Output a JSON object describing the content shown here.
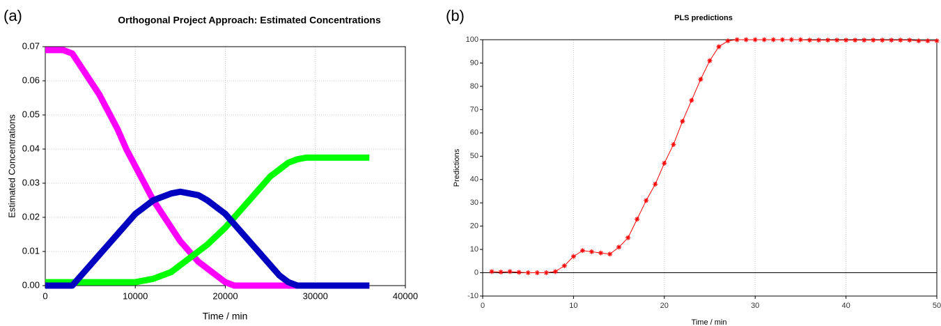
{
  "chart_data": [
    {
      "type": "line",
      "panel_label": "(a)",
      "title": "Orthogonal Project Approach: Estimated Concentrations",
      "xlabel": "Time / min",
      "ylabel": "Estimated Concentrations",
      "x": [
        0,
        1000,
        2000,
        3000,
        4000,
        5000,
        6000,
        7000,
        8000,
        9000,
        10000,
        11000,
        12000,
        13000,
        14000,
        15000,
        16000,
        17000,
        18000,
        19000,
        20000,
        21000,
        22000,
        23000,
        24000,
        25000,
        26000,
        27000,
        28000,
        29000,
        30000,
        31000,
        32000,
        33000,
        34000,
        35000,
        36000
      ],
      "series": [
        {
          "color": "#ff00ff",
          "values": [
            0.069,
            0.069,
            0.069,
            0.068,
            0.064,
            0.06,
            0.056,
            0.051,
            0.046,
            0.04,
            0.035,
            0.03,
            0.025,
            0.021,
            0.017,
            0.013,
            0.01,
            0.007,
            0.005,
            0.003,
            0.001,
            0,
            0,
            0,
            0,
            0,
            0,
            0,
            0,
            0,
            0,
            0,
            0,
            0,
            0,
            0,
            0
          ]
        },
        {
          "color": "#00ff00",
          "values": [
            0.001,
            0.001,
            0.001,
            0.001,
            0.001,
            0.001,
            0.001,
            0.001,
            0.001,
            0.001,
            0.001,
            0.0015,
            0.002,
            0.003,
            0.004,
            0.006,
            0.008,
            0.01,
            0.012,
            0.0145,
            0.017,
            0.02,
            0.023,
            0.026,
            0.029,
            0.032,
            0.034,
            0.036,
            0.037,
            0.0375,
            0.0375,
            0.0375,
            0.0375,
            0.0375,
            0.0375,
            0.0375,
            0.0375
          ]
        },
        {
          "color": "#0000c0",
          "values": [
            0,
            0,
            0,
            0,
            0.003,
            0.006,
            0.009,
            0.012,
            0.015,
            0.018,
            0.021,
            0.023,
            0.025,
            0.026,
            0.027,
            0.0275,
            0.027,
            0.0265,
            0.025,
            0.023,
            0.021,
            0.018,
            0.015,
            0.012,
            0.009,
            0.006,
            0.003,
            0.001,
            0,
            0,
            0,
            0,
            0,
            0,
            0,
            0,
            0
          ]
        }
      ],
      "xlim": [
        0,
        40000
      ],
      "xticks": [
        0,
        10000,
        20000,
        30000,
        40000
      ],
      "ylim": [
        0,
        0.07
      ],
      "yticks": [
        {
          "value": 0,
          "label": "0.00"
        },
        {
          "value": 0.01,
          "label": "0.01"
        },
        {
          "value": 0.02,
          "label": "0.02"
        },
        {
          "value": 0.03,
          "label": "0.03"
        },
        {
          "value": 0.04,
          "label": "0.04"
        },
        {
          "value": 0.05,
          "label": "0.05"
        },
        {
          "value": 0.06,
          "label": "0.06"
        },
        {
          "value": 0.07,
          "label": "0.07"
        }
      ],
      "grid": true
    },
    {
      "type": "line",
      "panel_label": "(b)",
      "title": "PLS predictions",
      "xlabel": "Time / min",
      "ylabel": "Predictions",
      "x": [
        1,
        2,
        3,
        4,
        5,
        6,
        7,
        8,
        9,
        10,
        11,
        12,
        13,
        14,
        15,
        16,
        17,
        18,
        19,
        20,
        21,
        22,
        23,
        24,
        25,
        26,
        27,
        28,
        29,
        30,
        31,
        32,
        33,
        34,
        35,
        36,
        37,
        38,
        39,
        40,
        41,
        42,
        43,
        44,
        45,
        46,
        47,
        48,
        49,
        50
      ],
      "series": [
        {
          "color": "#ff0000",
          "marker": "star",
          "values": [
            0.5,
            0.3,
            0.5,
            0.2,
            0,
            0,
            0,
            0.5,
            3,
            7,
            9.5,
            9,
            8.5,
            8,
            11,
            15,
            23,
            31,
            38,
            47,
            55,
            65,
            74,
            83,
            91,
            97,
            99.5,
            100,
            100,
            100,
            100,
            100,
            100,
            100,
            100,
            99.8,
            99.8,
            99.8,
            99.8,
            99.8,
            99.8,
            99.8,
            99.8,
            99.8,
            99.8,
            99.8,
            99.8,
            99.5,
            99.5,
            99.5
          ]
        }
      ],
      "xlim": [
        0,
        50
      ],
      "xticks": [
        0,
        10,
        20,
        30,
        40,
        50
      ],
      "ylim": [
        -10,
        100
      ],
      "yticks": [
        -10,
        0,
        10,
        20,
        30,
        40,
        50,
        60,
        70,
        80,
        90,
        100
      ],
      "grid": true
    }
  ]
}
